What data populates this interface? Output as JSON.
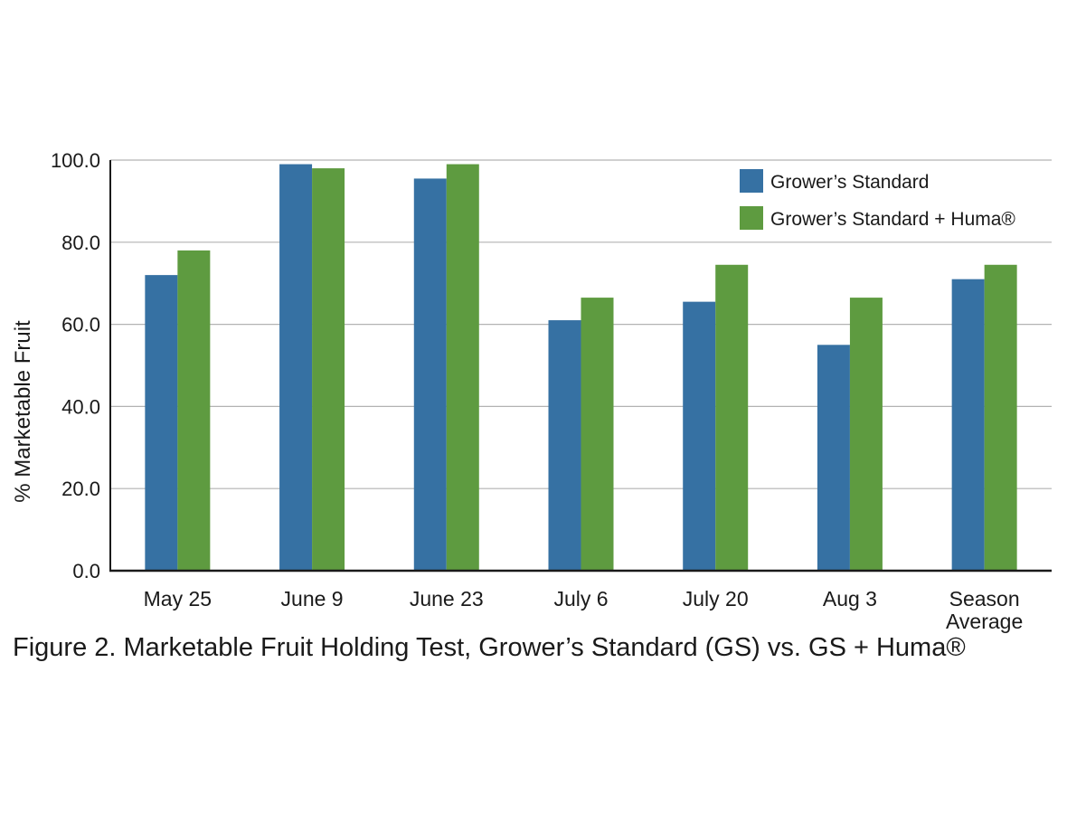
{
  "caption": "Figure 2. Marketable Fruit Holding Test, Grower’s Standard (GS) vs. GS + Huma®",
  "chart_data": {
    "type": "bar",
    "categories": [
      [
        "May 25"
      ],
      [
        "June 9"
      ],
      [
        "June 23"
      ],
      [
        "July 6"
      ],
      [
        "July 20"
      ],
      [
        "Aug 3"
      ],
      [
        "Season",
        "Average"
      ]
    ],
    "series": [
      {
        "name": "Grower’s Standard",
        "color": "#3671a3",
        "values": [
          72.0,
          99.0,
          95.5,
          61.0,
          65.5,
          55.0,
          71.0
        ]
      },
      {
        "name": "Grower’s Standard + Huma®",
        "color": "#5e9b40",
        "values": [
          78.0,
          98.0,
          99.0,
          66.5,
          74.5,
          66.5,
          74.5
        ]
      }
    ],
    "ylabel": "% Marketable Fruit",
    "ylim": [
      0,
      100
    ],
    "yticks": [
      "0.0",
      "20.0",
      "40.0",
      "60.0",
      "80.0",
      "100.0"
    ],
    "grid": true,
    "legend_position": "top-right"
  }
}
